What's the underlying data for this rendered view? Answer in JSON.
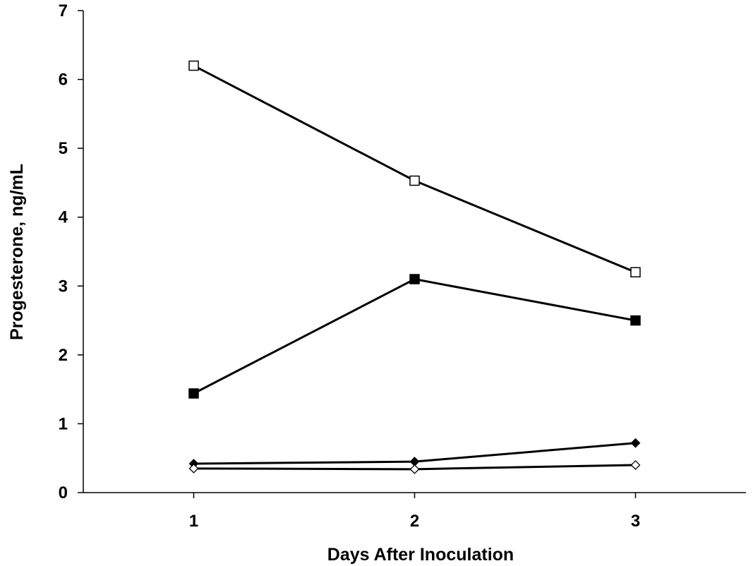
{
  "chart_data": {
    "type": "line",
    "title": "",
    "xlabel": "Days After Inoculation",
    "ylabel": "Progesterone, ng/mL",
    "x": [
      1,
      2,
      3
    ],
    "x_tick_labels": [
      "1",
      "2",
      "3"
    ],
    "xlim": [
      0.5,
      3.5
    ],
    "ylim": [
      0,
      7
    ],
    "y_ticks": [
      0,
      1,
      2,
      3,
      4,
      5,
      6,
      7
    ],
    "y_tick_labels": [
      "0",
      "1",
      "2",
      "3",
      "4",
      "5",
      "6",
      "7"
    ],
    "grid": false,
    "legend": "none",
    "line_color": "#000000",
    "series": [
      {
        "marker": "open-square",
        "values": [
          6.2,
          4.53,
          3.2
        ]
      },
      {
        "marker": "filled-square",
        "values": [
          1.44,
          3.1,
          2.5
        ]
      },
      {
        "marker": "filled-diamond",
        "values": [
          0.42,
          0.45,
          0.72
        ]
      },
      {
        "marker": "open-diamond",
        "values": [
          0.35,
          0.34,
          0.4
        ]
      }
    ]
  }
}
